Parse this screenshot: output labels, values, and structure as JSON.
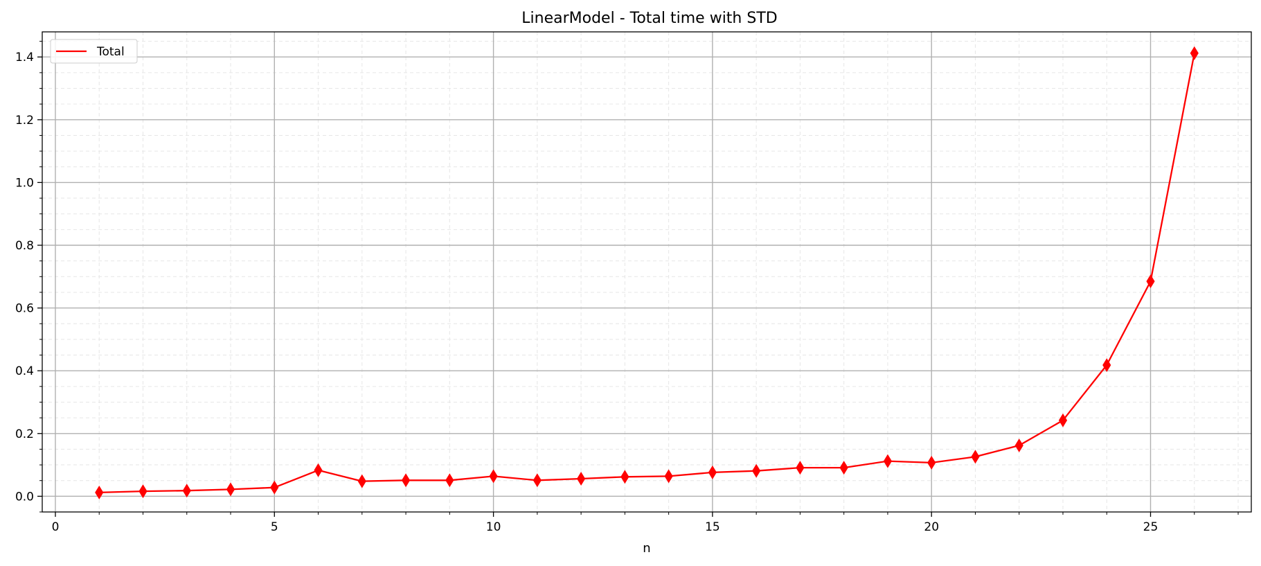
{
  "chart_data": {
    "type": "line",
    "title": "LinearModel - Total time with STD",
    "xlabel": "n",
    "ylabel": "",
    "xlim": [
      -0.3,
      27.3
    ],
    "ylim": [
      -0.05,
      1.48
    ],
    "x_ticks": [
      0,
      5,
      10,
      15,
      20,
      25
    ],
    "y_ticks": [
      0.0,
      0.2,
      0.4,
      0.6,
      0.8,
      1.0,
      1.2,
      1.4
    ],
    "x_minor_step": 1,
    "y_minor_step": 0.05,
    "grid": true,
    "minor_grid": true,
    "legend_position": "top-left",
    "series": [
      {
        "name": "Total",
        "color": "#ff0000",
        "marker": "thin_diamond",
        "x": [
          1,
          2,
          3,
          4,
          5,
          6,
          7,
          8,
          9,
          10,
          11,
          12,
          13,
          14,
          15,
          16,
          17,
          18,
          19,
          20,
          21,
          22,
          23,
          24,
          25,
          26
        ],
        "y": [
          0.012,
          0.016,
          0.018,
          0.022,
          0.028,
          0.083,
          0.048,
          0.051,
          0.051,
          0.064,
          0.051,
          0.056,
          0.062,
          0.064,
          0.076,
          0.081,
          0.091,
          0.091,
          0.112,
          0.107,
          0.126,
          0.162,
          0.242,
          0.418,
          0.685,
          1.412
        ]
      }
    ]
  }
}
